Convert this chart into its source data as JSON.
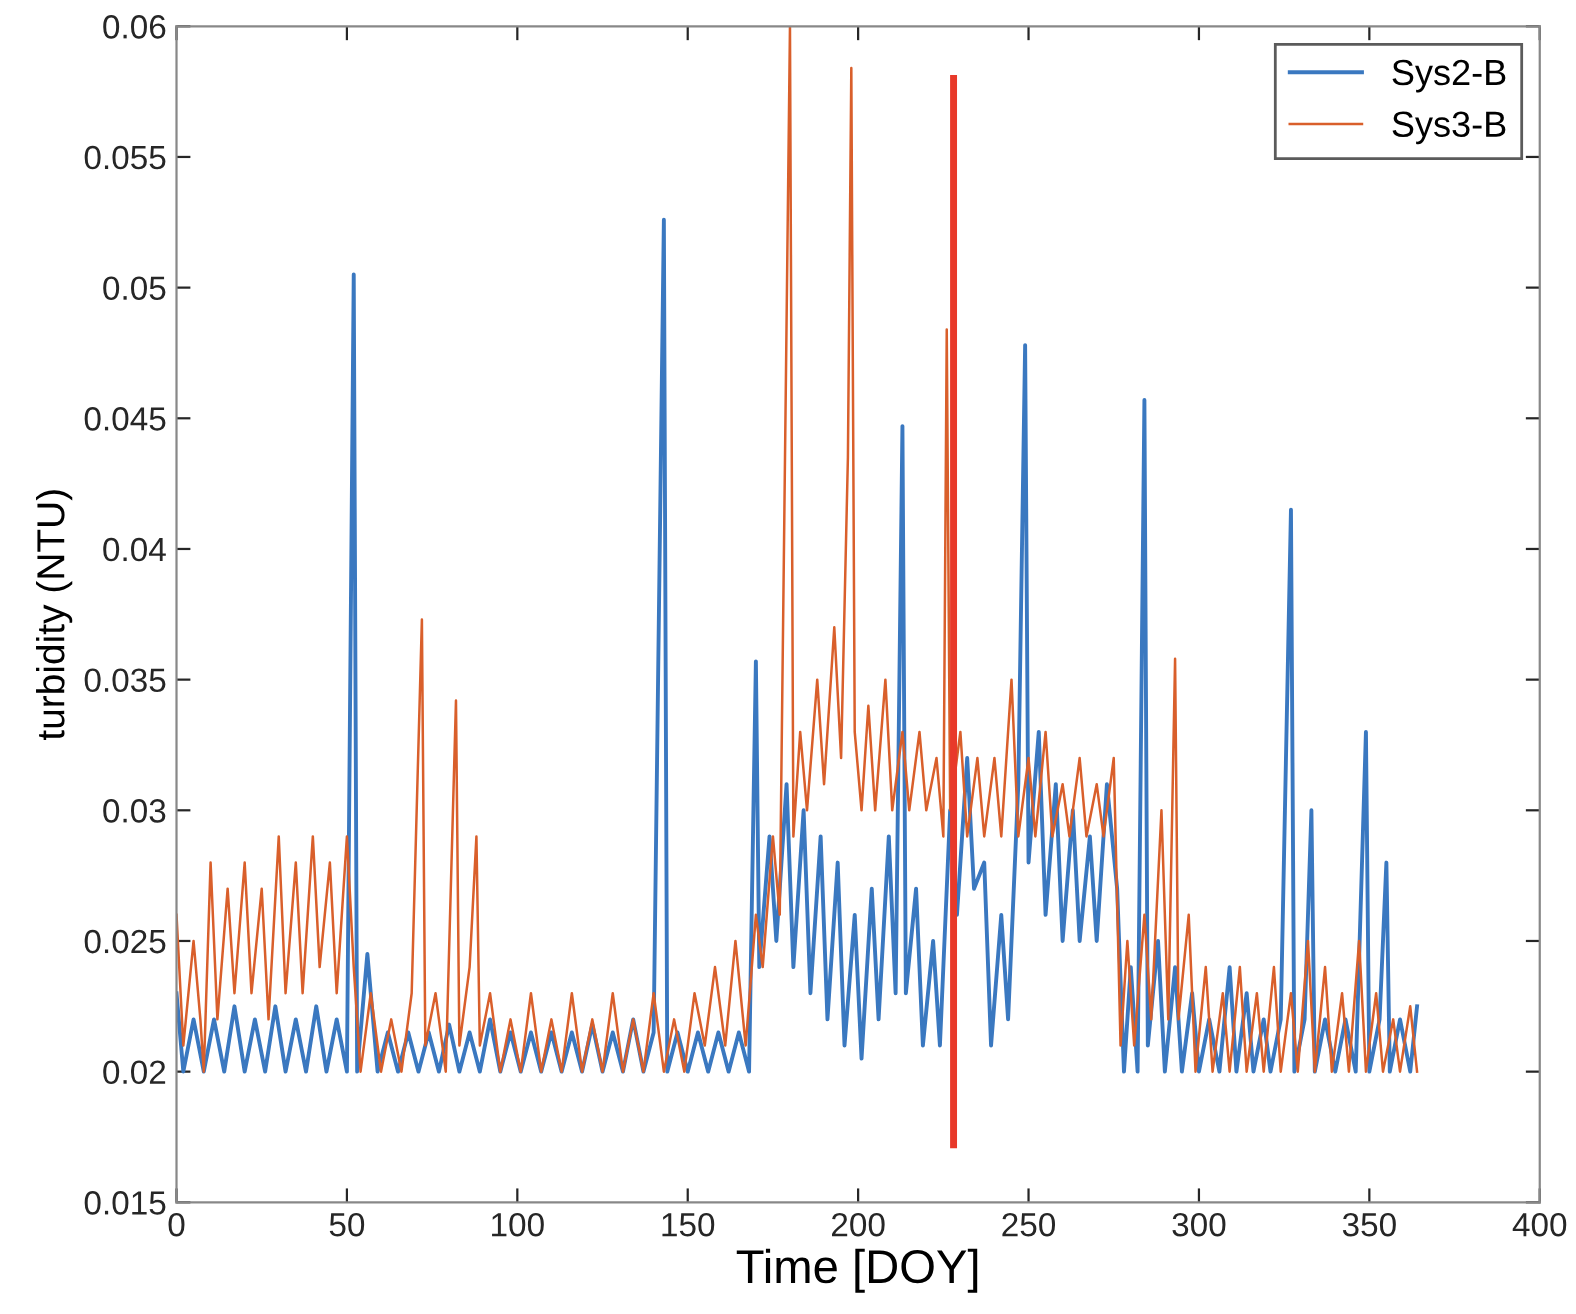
{
  "chart_data": {
    "type": "line",
    "xlabel": "Time [DOY]",
    "ylabel": "turbidity (NTU)",
    "xlim": [
      0,
      400
    ],
    "xticks": [
      0,
      50,
      100,
      150,
      200,
      250,
      300,
      350,
      400
    ],
    "ylim": [
      0.015,
      0.06
    ],
    "yticks": [
      0.015,
      0.02,
      0.025,
      0.03,
      0.035,
      0.04,
      0.045,
      0.05,
      0.055,
      0.06
    ],
    "grid": false,
    "legend": "top right",
    "marker": "none",
    "line_style": "solid",
    "series": [
      {
        "name": "Sys2-B",
        "color": "#3a78c0",
        "x": [
          0,
          2,
          5,
          8,
          11,
          14,
          17,
          20,
          23,
          26,
          29,
          32,
          35,
          38,
          41,
          44,
          47,
          50,
          52,
          53,
          56,
          59,
          62,
          65,
          68,
          71,
          74,
          77,
          80,
          83,
          86,
          89,
          92,
          95,
          98,
          101,
          104,
          107,
          110,
          113,
          116,
          119,
          122,
          125,
          128,
          131,
          134,
          137,
          140,
          143,
          144,
          147,
          150,
          153,
          156,
          159,
          162,
          165,
          168,
          170,
          171,
          174,
          176,
          179,
          181,
          184,
          186,
          189,
          191,
          194,
          196,
          199,
          201,
          204,
          206,
          209,
          211,
          213,
          214,
          217,
          219,
          222,
          224,
          227,
          229,
          232,
          234,
          237,
          239,
          242,
          244,
          247,
          249,
          250,
          253,
          255,
          258,
          260,
          263,
          265,
          268,
          270,
          273,
          276,
          278,
          280,
          282,
          284,
          285,
          288,
          290,
          293,
          295,
          298,
          300,
          303,
          306,
          309,
          311,
          314,
          316,
          319,
          321,
          324,
          327,
          328,
          331,
          333,
          334,
          337,
          340,
          343,
          346,
          349,
          350,
          353,
          355,
          356,
          359,
          362,
          364
        ],
        "values": [
          0.023,
          0.02,
          0.022,
          0.02,
          0.022,
          0.02,
          0.0225,
          0.02,
          0.022,
          0.02,
          0.0225,
          0.02,
          0.022,
          0.02,
          0.0225,
          0.02,
          0.022,
          0.02,
          0.0505,
          0.02,
          0.0245,
          0.02,
          0.0215,
          0.02,
          0.0215,
          0.02,
          0.0215,
          0.02,
          0.0218,
          0.02,
          0.0215,
          0.02,
          0.022,
          0.02,
          0.0215,
          0.02,
          0.0215,
          0.02,
          0.0215,
          0.02,
          0.0215,
          0.02,
          0.0218,
          0.02,
          0.0215,
          0.02,
          0.022,
          0.02,
          0.0215,
          0.0526,
          0.02,
          0.0215,
          0.02,
          0.0215,
          0.02,
          0.0215,
          0.02,
          0.0215,
          0.02,
          0.0357,
          0.024,
          0.029,
          0.025,
          0.031,
          0.024,
          0.03,
          0.023,
          0.029,
          0.022,
          0.028,
          0.021,
          0.026,
          0.0205,
          0.027,
          0.022,
          0.029,
          0.023,
          0.0447,
          0.023,
          0.027,
          0.021,
          0.025,
          0.021,
          0.03,
          0.026,
          0.032,
          0.027,
          0.028,
          0.021,
          0.026,
          0.022,
          0.031,
          0.0478,
          0.028,
          0.033,
          0.026,
          0.031,
          0.025,
          0.03,
          0.025,
          0.029,
          0.025,
          0.031,
          0.027,
          0.02,
          0.024,
          0.02,
          0.0457,
          0.021,
          0.025,
          0.02,
          0.024,
          0.02,
          0.023,
          0.02,
          0.022,
          0.02,
          0.024,
          0.02,
          0.023,
          0.02,
          0.022,
          0.02,
          0.022,
          0.0415,
          0.02,
          0.022,
          0.03,
          0.02,
          0.022,
          0.02,
          0.022,
          0.02,
          0.033,
          0.02,
          0.022,
          0.028,
          0.02,
          0.022,
          0.02,
          0.0225
        ]
      },
      {
        "name": "Sys3-B",
        "color": "#d95f2b",
        "x": [
          0,
          2,
          5,
          7,
          8,
          10,
          12,
          15,
          17,
          20,
          22,
          25,
          27,
          30,
          32,
          35,
          37,
          40,
          42,
          45,
          47,
          50,
          52,
          54,
          57,
          60,
          63,
          66,
          69,
          72,
          73,
          76,
          79,
          82,
          83,
          86,
          88,
          89,
          92,
          95,
          98,
          101,
          104,
          107,
          110,
          113,
          116,
          119,
          122,
          125,
          128,
          131,
          134,
          137,
          140,
          143,
          146,
          149,
          152,
          155,
          158,
          161,
          164,
          167,
          170,
          172,
          175,
          177,
          180,
          181,
          183,
          185,
          188,
          190,
          193,
          195,
          197,
          198,
          199,
          201,
          203,
          205,
          208,
          210,
          213,
          215,
          218,
          220,
          223,
          225,
          226,
          227,
          230,
          232,
          235,
          237,
          240,
          242,
          245,
          247,
          250,
          252,
          255,
          257,
          260,
          262,
          265,
          267,
          270,
          272,
          275,
          277,
          279,
          281,
          284,
          286,
          289,
          291,
          293,
          294,
          297,
          299,
          302,
          304,
          307,
          309,
          312,
          314,
          317,
          319,
          322,
          324,
          327,
          329,
          332,
          334,
          337,
          339,
          342,
          344,
          347,
          349,
          352,
          354,
          357,
          359,
          362,
          364
        ],
        "values": [
          0.026,
          0.021,
          0.025,
          0.022,
          0.02,
          0.028,
          0.022,
          0.027,
          0.023,
          0.028,
          0.023,
          0.027,
          0.022,
          0.029,
          0.023,
          0.028,
          0.023,
          0.029,
          0.024,
          0.028,
          0.023,
          0.029,
          0.024,
          0.02,
          0.023,
          0.02,
          0.022,
          0.02,
          0.023,
          0.0373,
          0.021,
          0.023,
          0.02,
          0.0342,
          0.021,
          0.024,
          0.029,
          0.021,
          0.023,
          0.02,
          0.022,
          0.02,
          0.023,
          0.02,
          0.022,
          0.02,
          0.023,
          0.02,
          0.022,
          0.02,
          0.023,
          0.02,
          0.022,
          0.02,
          0.023,
          0.02,
          0.022,
          0.02,
          0.023,
          0.021,
          0.024,
          0.021,
          0.025,
          0.021,
          0.026,
          0.024,
          0.029,
          0.026,
          0.06,
          0.029,
          0.033,
          0.03,
          0.035,
          0.031,
          0.037,
          0.032,
          0.0435,
          0.0584,
          0.033,
          0.03,
          0.034,
          0.03,
          0.035,
          0.03,
          0.033,
          0.03,
          0.033,
          0.03,
          0.032,
          0.029,
          0.0484,
          0.03,
          0.033,
          0.029,
          0.032,
          0.029,
          0.032,
          0.029,
          0.035,
          0.029,
          0.032,
          0.029,
          0.033,
          0.029,
          0.031,
          0.029,
          0.032,
          0.029,
          0.031,
          0.029,
          0.032,
          0.021,
          0.025,
          0.021,
          0.026,
          0.022,
          0.03,
          0.022,
          0.0358,
          0.022,
          0.026,
          0.02,
          0.024,
          0.02,
          0.023,
          0.02,
          0.024,
          0.02,
          0.023,
          0.02,
          0.024,
          0.02,
          0.023,
          0.02,
          0.025,
          0.02,
          0.024,
          0.02,
          0.023,
          0.02,
          0.025,
          0.02,
          0.023,
          0.02,
          0.022,
          0.02,
          0.0225,
          0.02
        ]
      },
      {
        "color": "#e8392a",
        "x": [
          228,
          228
        ],
        "values": [
          0.0172,
          0.058
        ]
      }
    ]
  }
}
